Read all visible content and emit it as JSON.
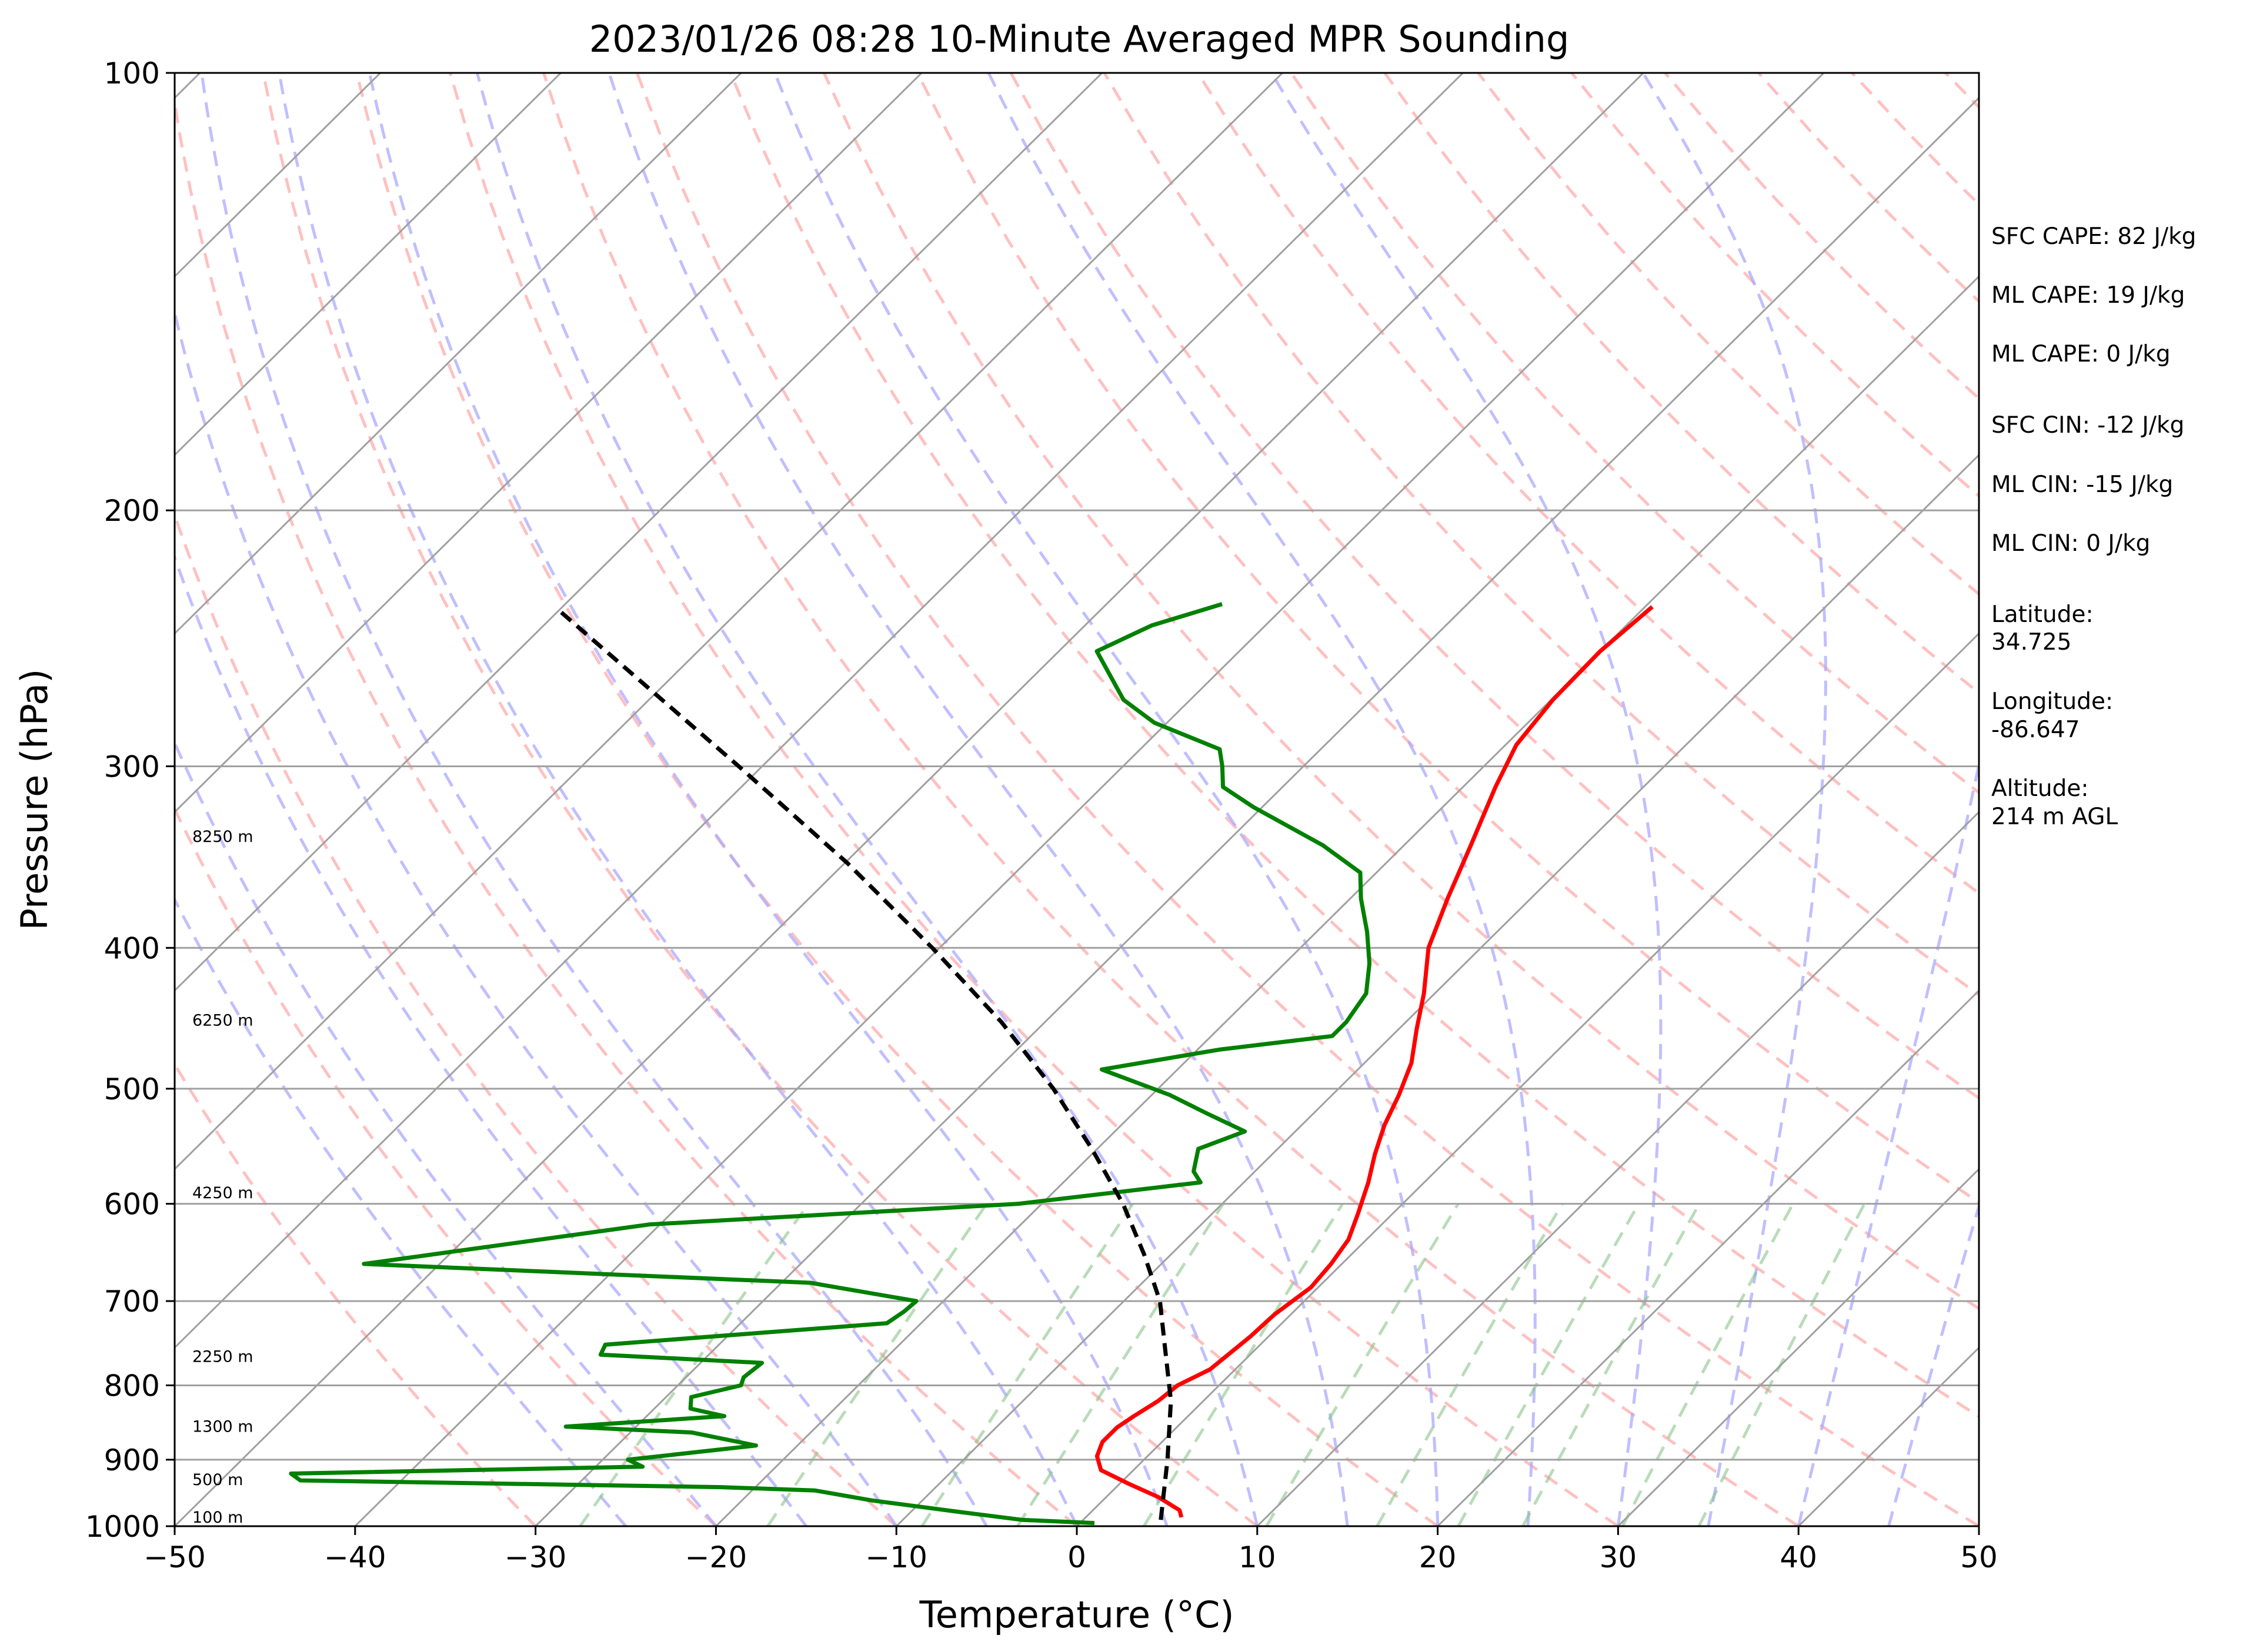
{
  "chart_data": {
    "type": "line",
    "title": "2023/01/26 08:28 10-Minute Averaged MPR Sounding",
    "xlabel": "Temperature (°C)",
    "ylabel": "Pressure (hPa)",
    "xlim": [
      -50,
      50
    ],
    "ylim": [
      1000,
      100
    ],
    "y_scale": "log",
    "skew": "skew-T",
    "grid": true,
    "x_ticks": [
      "−50",
      "−40",
      "−30",
      "−20",
      "−10",
      "0",
      "10",
      "20",
      "30",
      "40",
      "50"
    ],
    "y_ticks": [
      "100",
      "200",
      "300",
      "400",
      "500",
      "600",
      "700",
      "800",
      "900",
      "1000"
    ],
    "series": [
      {
        "color": "#ff0000",
        "points": [
          [
            986,
            5.3
          ],
          [
            975,
            4.8
          ],
          [
            955,
            2.9
          ],
          [
            935,
            0.5
          ],
          [
            915,
            -1.8
          ],
          [
            895,
            -2.8
          ],
          [
            875,
            -3.3
          ],
          [
            855,
            -3.3
          ],
          [
            840,
            -3.0
          ],
          [
            820,
            -2.5
          ],
          [
            800,
            -2.3
          ],
          [
            780,
            -1.4
          ],
          [
            760,
            -1.2
          ],
          [
            740,
            -1.0
          ],
          [
            715,
            -0.9
          ],
          [
            685,
            -0.4
          ],
          [
            660,
            -0.6
          ],
          [
            635,
            -1.0
          ],
          [
            610,
            -1.9
          ],
          [
            580,
            -3.1
          ],
          [
            555,
            -4.3
          ],
          [
            530,
            -5.4
          ],
          [
            505,
            -6.3
          ],
          [
            480,
            -7.4
          ],
          [
            455,
            -9.0
          ],
          [
            430,
            -10.6
          ],
          [
            400,
            -12.9
          ],
          [
            370,
            -14.6
          ],
          [
            340,
            -16.3
          ],
          [
            310,
            -18.2
          ],
          [
            290,
            -19.4
          ],
          [
            270,
            -19.9
          ],
          [
            250,
            -20.0
          ],
          [
            233,
            -19.6
          ]
        ]
      },
      {
        "color": "#008000",
        "points": [
          [
            995,
            0.8
          ],
          [
            990,
            -3.4
          ],
          [
            978,
            -7.2
          ],
          [
            960,
            -12.8
          ],
          [
            945,
            -16.5
          ],
          [
            940,
            -21.9
          ],
          [
            930,
            -45.6
          ],
          [
            920,
            -46.5
          ],
          [
            910,
            -27.4
          ],
          [
            905,
            -28.0
          ],
          [
            900,
            -28.6
          ],
          [
            880,
            -22.3
          ],
          [
            862,
            -26.6
          ],
          [
            854,
            -33.9
          ],
          [
            840,
            -25.7
          ],
          [
            830,
            -28.0
          ],
          [
            815,
            -28.6
          ],
          [
            800,
            -26.5
          ],
          [
            790,
            -26.8
          ],
          [
            772,
            -26.6
          ],
          [
            762,
            -36.0
          ],
          [
            750,
            -36.3
          ],
          [
            725,
            -21.9
          ],
          [
            712,
            -21.6
          ],
          [
            700,
            -21.5
          ],
          [
            680,
            -28.4
          ],
          [
            660,
            -54.2
          ],
          [
            620,
            -40.6
          ],
          [
            600,
            -21.3
          ],
          [
            580,
            -12.4
          ],
          [
            570,
            -13.4
          ],
          [
            550,
            -14.4
          ],
          [
            535,
            -12.8
          ],
          [
            520,
            -15.9
          ],
          [
            505,
            -19.0
          ],
          [
            485,
            -24.2
          ],
          [
            470,
            -18.8
          ],
          [
            460,
            -13.3
          ],
          [
            450,
            -13.3
          ],
          [
            430,
            -13.8
          ],
          [
            410,
            -15.3
          ],
          [
            390,
            -17.2
          ],
          [
            370,
            -19.4
          ],
          [
            355,
            -20.9
          ],
          [
            340,
            -24.5
          ],
          [
            320,
            -30.5
          ],
          [
            310,
            -33.3
          ],
          [
            300,
            -34.5
          ],
          [
            292,
            -35.6
          ],
          [
            280,
            -40.7
          ],
          [
            270,
            -43.7
          ],
          [
            250,
            -47.9
          ],
          [
            240,
            -46.3
          ],
          [
            232,
            -43.6
          ]
        ]
      },
      {
        "color": "#000000",
        "style": "dashed",
        "points": [
          [
            990,
            4.3
          ],
          [
            900,
            1.3
          ],
          [
            820,
            -1.8
          ],
          [
            750,
            -5.3
          ],
          [
            700,
            -8.0
          ],
          [
            650,
            -11.5
          ],
          [
            600,
            -15.5
          ],
          [
            550,
            -20.3
          ],
          [
            500,
            -25.8
          ],
          [
            450,
            -32.4
          ],
          [
            400,
            -40.4
          ],
          [
            350,
            -49.8
          ],
          [
            300,
            -61.3
          ],
          [
            250,
            -75.1
          ],
          [
            234,
            -80.1
          ]
        ]
      }
    ],
    "height_labels": [
      {
        "pressure": 1000,
        "label": "100 m"
      },
      {
        "pressure": 942,
        "label": "500 m"
      },
      {
        "pressure": 866,
        "label": "1300 m"
      },
      {
        "pressure": 775,
        "label": "2250 m"
      },
      {
        "pressure": 598,
        "label": "4250 m"
      },
      {
        "pressure": 455,
        "label": "6250 m"
      },
      {
        "pressure": 340,
        "label": "8250 m"
      }
    ],
    "stats": [
      "SFC CAPE: 82 J/kg",
      "ML CAPE: 19 J/kg",
      "ML CAPE: 0 J/kg",
      "SFC CIN: -12 J/kg",
      "ML CIN: -15 J/kg",
      "ML CIN: 0 J/kg",
      "Latitude:",
      "34.725",
      "Longitude:",
      "-86.647",
      "Altitude:",
      "214 m AGL"
    ],
    "background": {
      "isotherm_color": "#a0a0a0",
      "isobar_color": "#a0a0a0",
      "dry_adiabat_color": "#ffb0b0",
      "moist_adiabat_color": "#aaaaff",
      "mixing_ratio_color": "#88c488"
    }
  }
}
